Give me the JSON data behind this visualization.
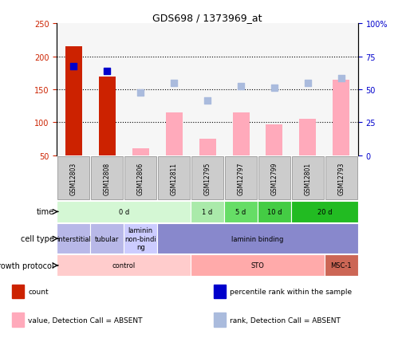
{
  "title": "GDS698 / 1373969_at",
  "samples": [
    "GSM12803",
    "GSM12808",
    "GSM12806",
    "GSM12811",
    "GSM12795",
    "GSM12797",
    "GSM12799",
    "GSM12801",
    "GSM12793"
  ],
  "count_values": [
    215,
    170,
    0,
    0,
    0,
    0,
    0,
    0,
    0
  ],
  "count_color": "#cc2200",
  "percentile_values": [
    185,
    178,
    0,
    0,
    0,
    0,
    0,
    0,
    0
  ],
  "percentile_color": "#0000cc",
  "absent_value_values": [
    0,
    0,
    60,
    115,
    75,
    115,
    97,
    105,
    165
  ],
  "absent_value_color": "#ffaabb",
  "absent_rank_values": [
    0,
    0,
    145,
    160,
    133,
    155,
    152,
    160,
    167
  ],
  "absent_rank_color": "#aabbdd",
  "ylim_left": [
    50,
    250
  ],
  "ylim_right": [
    0,
    100
  ],
  "yticks_left": [
    50,
    100,
    150,
    200,
    250
  ],
  "yticks_right": [
    0,
    25,
    50,
    75,
    100
  ],
  "ytick_labels_left": [
    "50",
    "100",
    "150",
    "200",
    "250"
  ],
  "ytick_labels_right": [
    "0",
    "25",
    "50",
    "75",
    "100%"
  ],
  "left_tick_color": "#cc2200",
  "right_tick_color": "#0000cc",
  "time_groups": [
    {
      "label": "0 d",
      "start": 0,
      "end": 4,
      "color": "#d4f7d4"
    },
    {
      "label": "1 d",
      "start": 4,
      "end": 5,
      "color": "#aaeaaa"
    },
    {
      "label": "5 d",
      "start": 5,
      "end": 6,
      "color": "#66dd66"
    },
    {
      "label": "10 d",
      "start": 6,
      "end": 7,
      "color": "#44cc44"
    },
    {
      "label": "20 d",
      "start": 7,
      "end": 9,
      "color": "#22bb22"
    }
  ],
  "cell_type_groups": [
    {
      "label": "interstitial",
      "start": 0,
      "end": 1,
      "color": "#b8b8e8"
    },
    {
      "label": "tubular",
      "start": 1,
      "end": 2,
      "color": "#b8b8e8"
    },
    {
      "label": "laminin\nnon-bindi\nng",
      "start": 2,
      "end": 3,
      "color": "#ccccff"
    },
    {
      "label": "laminin binding",
      "start": 3,
      "end": 9,
      "color": "#8888cc"
    }
  ],
  "growth_protocol_groups": [
    {
      "label": "control",
      "start": 0,
      "end": 4,
      "color": "#ffcccc"
    },
    {
      "label": "STO",
      "start": 4,
      "end": 8,
      "color": "#ffaaaa"
    },
    {
      "label": "MSC-1",
      "start": 8,
      "end": 9,
      "color": "#cc6655"
    }
  ],
  "legend_items": [
    {
      "label": "count",
      "color": "#cc2200"
    },
    {
      "label": "percentile rank within the sample",
      "color": "#0000cc"
    },
    {
      "label": "value, Detection Call = ABSENT",
      "color": "#ffaabb"
    },
    {
      "label": "rank, Detection Call = ABSENT",
      "color": "#aabbdd"
    }
  ],
  "bar_width": 0.5,
  "dot_size": 30,
  "sample_box_color": "#cccccc",
  "sample_box_edge": "#888888"
}
